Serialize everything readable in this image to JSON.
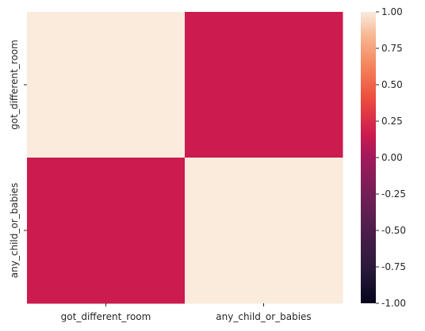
{
  "chart_data": {
    "type": "heatmap",
    "rows": [
      "got_different_room",
      "any_child_or_babies"
    ],
    "columns": [
      "got_different_room",
      "any_child_or_babies"
    ],
    "values": [
      [
        1.0,
        0.0
      ],
      [
        0.0,
        1.0
      ]
    ],
    "colorbar": {
      "vmin": -1.0,
      "vmax": 1.0,
      "ticks": [
        "1.00",
        "0.75",
        "0.50",
        "0.25",
        "0.00",
        "-0.25",
        "-0.50",
        "-0.75",
        "-1.00"
      ],
      "tick_values": [
        1.0,
        0.75,
        0.5,
        0.25,
        0.0,
        -0.25,
        -0.5,
        -0.75,
        -1.0
      ],
      "colormap": "rocket",
      "colors": {
        "high": "#FAEBDD",
        "mid": "#CB1B4F",
        "low": "#03051A"
      }
    },
    "title": "",
    "xlabel": "",
    "ylabel": ""
  }
}
